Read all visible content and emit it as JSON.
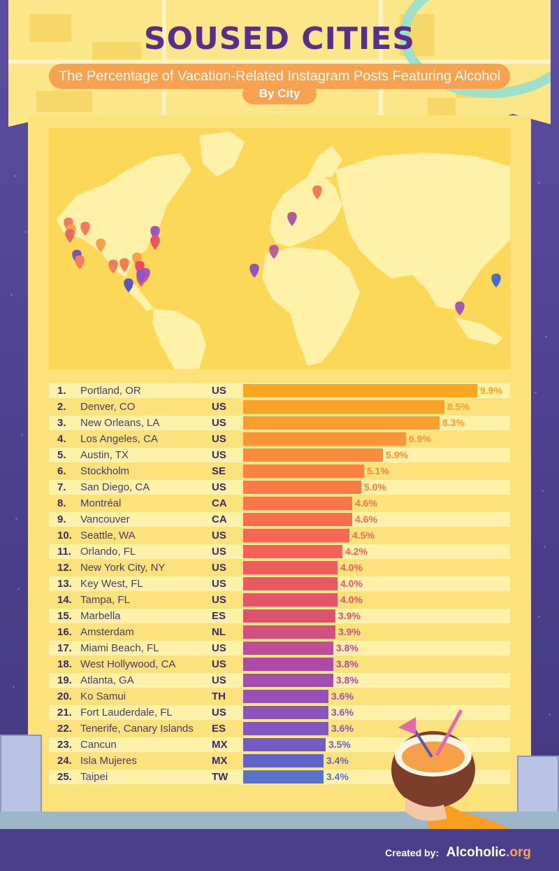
{
  "header": {
    "title": "SOUSED CITIES",
    "subtitle": "The Percentage of Vacation-Related Instagram Posts Featuring Alcohol",
    "by_city": "By City"
  },
  "footer": {
    "created_by": "Created by:",
    "brand": "Alcoholic",
    "brand_tld": ".org"
  },
  "colors": {
    "background": "#4b3f8c",
    "panel": "#fce27a",
    "map": "#fbd858",
    "title": "#5a2e8c"
  },
  "map_pins": [
    {
      "color": "#f47b5b"
    },
    {
      "color": "#f9a04b"
    },
    {
      "color": "#e86a5c"
    },
    {
      "color": "#f47b5b"
    },
    {
      "color": "#f9a04b"
    },
    {
      "color": "#7c56c0"
    },
    {
      "color": "#f47b5b"
    },
    {
      "color": "#f47b5b"
    },
    {
      "color": "#f97c4b"
    },
    {
      "color": "#f9a04b"
    },
    {
      "color": "#9a56c0"
    },
    {
      "color": "#e8565c"
    },
    {
      "color": "#e84a6a"
    },
    {
      "color": "#c04ab5"
    },
    {
      "color": "#e85a5c"
    },
    {
      "color": "#5a56c0"
    },
    {
      "color": "#8e56c0"
    },
    {
      "color": "#f47b5b"
    },
    {
      "color": "#c05a9a"
    },
    {
      "color": "#b05aa0"
    },
    {
      "color": "#8e56c0"
    },
    {
      "color": "#a05ab0"
    },
    {
      "color": "#4a6ad0"
    }
  ],
  "chart_data": {
    "type": "bar",
    "title": "SOUSED CITIES",
    "subtitle": "The Percentage of Vacation-Related Instagram Posts Featuring Alcohol",
    "xlim": [
      0,
      10
    ],
    "unit": "%",
    "rows": [
      {
        "rank": "1.",
        "city": "Portland, OR",
        "country": "US",
        "value": 9.9,
        "label": "9.9%",
        "color": "#f9a620"
      },
      {
        "rank": "2.",
        "city": "Denver, CO",
        "country": "US",
        "value": 8.5,
        "label": "8.5%",
        "color": "#f9a228"
      },
      {
        "rank": "3.",
        "city": "New Orleans, LA",
        "country": "US",
        "value": 8.3,
        "label": "8.3%",
        "color": "#f99d2e"
      },
      {
        "rank": "4.",
        "city": "Los Angeles, CA",
        "country": "US",
        "value": 6.9,
        "label": "6.9%",
        "color": "#f99536"
      },
      {
        "rank": "5.",
        "city": "Austin, TX",
        "country": "US",
        "value": 5.9,
        "label": "5.9%",
        "color": "#f98d3c"
      },
      {
        "rank": "6.",
        "city": "Stockholm",
        "country": "SE",
        "value": 5.1,
        "label": "5.1%",
        "color": "#f98442"
      },
      {
        "rank": "7.",
        "city": "San Diego, CA",
        "country": "US",
        "value": 5.0,
        "label": "5.0%",
        "color": "#f97c46"
      },
      {
        "rank": "8.",
        "city": "Montréal",
        "country": "CA",
        "value": 4.6,
        "label": "4.6%",
        "color": "#f9754a"
      },
      {
        "rank": "9.",
        "city": "Vancouver",
        "country": "CA",
        "value": 4.6,
        "label": "4.6%",
        "color": "#f86e4e"
      },
      {
        "rank": "10.",
        "city": "Seattle, WA",
        "country": "US",
        "value": 4.5,
        "label": "4.5%",
        "color": "#f66852"
      },
      {
        "rank": "11.",
        "city": "Orlando, FL",
        "country": "US",
        "value": 4.2,
        "label": "4.2%",
        "color": "#f36256"
      },
      {
        "rank": "12.",
        "city": "New York City, NY",
        "country": "US",
        "value": 4.0,
        "label": "4.0%",
        "color": "#ef5c5c"
      },
      {
        "rank": "13.",
        "city": "Key West, FL",
        "country": "US",
        "value": 4.0,
        "label": "4.0%",
        "color": "#ea5862"
      },
      {
        "rank": "14.",
        "city": "Tampa, FL",
        "country": "US",
        "value": 4.0,
        "label": "4.0%",
        "color": "#e55468"
      },
      {
        "rank": "15.",
        "city": "Marbella",
        "country": "ES",
        "value": 3.9,
        "label": "3.9%",
        "color": "#de5270"
      },
      {
        "rank": "16.",
        "city": "Amsterdam",
        "country": "NL",
        "value": 3.9,
        "label": "3.9%",
        "color": "#d25080"
      },
      {
        "rank": "17.",
        "city": "Miami Beach, FL",
        "country": "US",
        "value": 3.8,
        "label": "3.8%",
        "color": "#c04c9a"
      },
      {
        "rank": "18.",
        "city": "West Hollywood, CA",
        "country": "US",
        "value": 3.8,
        "label": "3.8%",
        "color": "#b04aa8"
      },
      {
        "rank": "19.",
        "city": "Atlanta, GA",
        "country": "US",
        "value": 3.8,
        "label": "3.8%",
        "color": "#a44cb2"
      },
      {
        "rank": "20.",
        "city": "Ko Samui",
        "country": "TH",
        "value": 3.6,
        "label": "3.6%",
        "color": "#9850b8"
      },
      {
        "rank": "21.",
        "city": "Fort Lauderdale, FL",
        "country": "US",
        "value": 3.6,
        "label": "3.6%",
        "color": "#8c54bc"
      },
      {
        "rank": "22.",
        "city": "Tenerife, Canary Islands",
        "country": "ES",
        "value": 3.6,
        "label": "3.6%",
        "color": "#8058c0"
      },
      {
        "rank": "23.",
        "city": "Cancun",
        "country": "MX",
        "value": 3.5,
        "label": "3.5%",
        "color": "#705cc4"
      },
      {
        "rank": "24.",
        "city": "Isla Mujeres",
        "country": "MX",
        "value": 3.4,
        "label": "3.4%",
        "color": "#6064c8"
      },
      {
        "rank": "25.",
        "city": "Taipei",
        "country": "TW",
        "value": 3.4,
        "label": "3.4%",
        "color": "#5a72cc"
      }
    ]
  }
}
